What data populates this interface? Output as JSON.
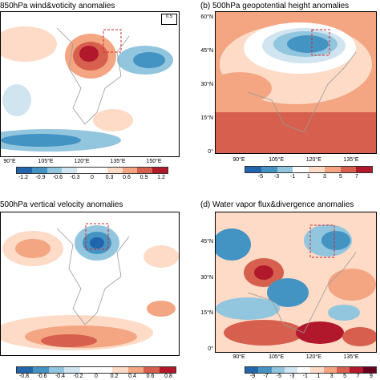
{
  "panels": {
    "a": {
      "title": "850hPa wind&voticity anomalies",
      "lon_labels": [
        "90°E",
        "105°E",
        "120°E",
        "135°E",
        "150°E"
      ],
      "lat_labels": [],
      "ref_vector": "0.5",
      "colorbar_labels": [
        "-1.2",
        "-0.9",
        "-0.6",
        "-0.3",
        "0",
        "0.3",
        "0.6",
        "0.9",
        "1.2"
      ]
    },
    "b": {
      "title": "(b) 500hPa geopotential height anomalies",
      "lon_labels": [
        "90°E",
        "105°E",
        "120°E",
        "135°E"
      ],
      "lat_labels": [
        "60°N",
        "45°N",
        "30°N",
        "15°N",
        "0°"
      ],
      "colorbar_labels": [
        "-5",
        "-3",
        "-1",
        "1",
        "3",
        "5",
        "7"
      ]
    },
    "c": {
      "title": "500hPa vertical velocity anomalies",
      "lon_labels": [],
      "lat_labels": [],
      "colorbar_labels": [
        "-0.8",
        "-0.6",
        "-0.4",
        "-0.2",
        "0",
        "0.2",
        "0.4",
        "0.6",
        "0.8"
      ]
    },
    "d": {
      "title": "(d) Water vapor flux&divergence anomalies",
      "lon_labels": [
        "90°E",
        "105°E",
        "120°E",
        "135°E"
      ],
      "lat_labels": [
        "45°N",
        "30°N",
        "15°N",
        "0°"
      ],
      "colorbar_labels": [
        "-9",
        "-7",
        "-5",
        "-3",
        "-1",
        "1",
        "3",
        "5",
        "7",
        "9"
      ]
    }
  },
  "colors": {
    "dark_blue": "#2166ac",
    "mid_blue": "#4393c3",
    "light_blue": "#92c5de",
    "pale_blue": "#d1e5f0",
    "white": "#ffffff",
    "pale_red": "#fddbc7",
    "light_red": "#f4a582",
    "mid_red": "#d6604d",
    "dark_red": "#b2182b",
    "vector": "#2b3fd6",
    "box": "#d62728"
  }
}
